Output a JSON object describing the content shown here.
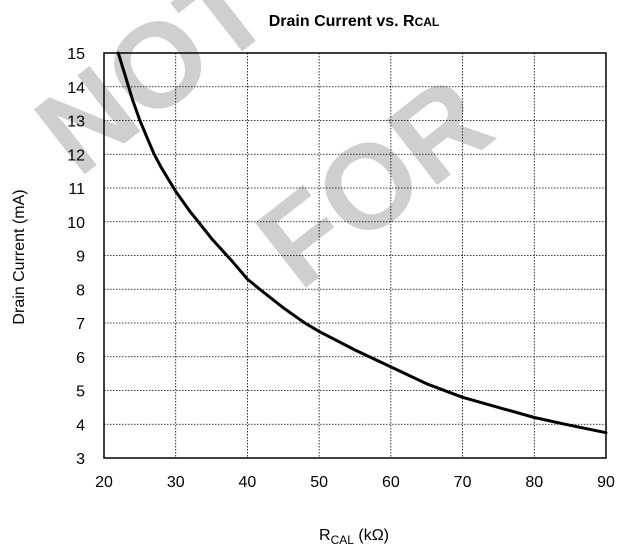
{
  "watermark": {
    "line1": "NOT",
    "line2": "FOR",
    "color": "#cfcfcf"
  },
  "chart_data": {
    "type": "line",
    "title": {
      "main": "Drain Current vs. R",
      "subscript": "CAL"
    },
    "xlabel": {
      "main": "R",
      "subscript": "CAL",
      "unit": " (kΩ)"
    },
    "ylabel": "Drain Current (mA)",
    "xlim": [
      20,
      90
    ],
    "ylim": [
      3,
      15
    ],
    "x_ticks": [
      20,
      30,
      40,
      50,
      60,
      70,
      80,
      90
    ],
    "y_ticks": [
      3,
      4,
      5,
      6,
      7,
      8,
      9,
      10,
      11,
      12,
      13,
      14,
      15
    ],
    "grid": true,
    "grid_style": "dotted",
    "series": [
      {
        "color": "#000000",
        "x": [
          22,
          23,
          24,
          25,
          26,
          27,
          28,
          30,
          32,
          35,
          38,
          40,
          42,
          45,
          48,
          50,
          55,
          60,
          65,
          70,
          75,
          80,
          85,
          90
        ],
        "y": [
          15.0,
          14.3,
          13.6,
          13.0,
          12.5,
          12.0,
          11.6,
          10.9,
          10.3,
          9.5,
          8.8,
          8.3,
          7.95,
          7.45,
          7.0,
          6.75,
          6.2,
          5.7,
          5.2,
          4.8,
          4.5,
          4.2,
          3.97,
          3.75
        ]
      }
    ]
  }
}
